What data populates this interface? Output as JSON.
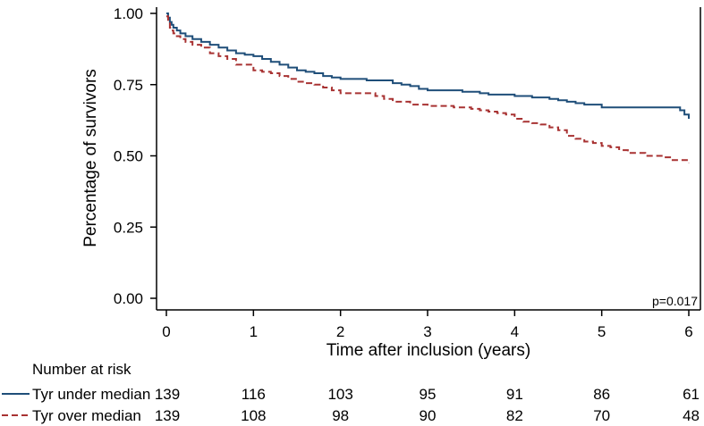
{
  "chart_data": {
    "type": "line",
    "title": "",
    "xlabel": "Time after inclusion (years)",
    "ylabel": "Percentage of survivors",
    "xlim": [
      0,
      6
    ],
    "ylim": [
      0,
      1
    ],
    "x_ticks": [
      "0",
      "1",
      "2",
      "3",
      "4",
      "5",
      "6"
    ],
    "y_ticks": [
      "0.00",
      "0.25",
      "0.50",
      "0.75",
      "1.00"
    ],
    "annotation": "p=0.017",
    "series": [
      {
        "name": "Tyr under median",
        "color": "#1f4e79",
        "style": "solid",
        "x": [
          0,
          0.02,
          0.04,
          0.06,
          0.08,
          0.12,
          0.16,
          0.22,
          0.3,
          0.4,
          0.5,
          0.6,
          0.7,
          0.8,
          0.9,
          1.0,
          1.1,
          1.2,
          1.3,
          1.4,
          1.5,
          1.6,
          1.7,
          1.8,
          1.9,
          2.0,
          2.3,
          2.6,
          2.7,
          2.8,
          2.9,
          3.0,
          3.4,
          3.6,
          3.7,
          4.0,
          4.2,
          4.4,
          4.5,
          4.6,
          4.7,
          4.8,
          5.0,
          5.9,
          5.95,
          6.0
        ],
        "y": [
          1.0,
          0.985,
          0.97,
          0.96,
          0.95,
          0.94,
          0.93,
          0.92,
          0.91,
          0.9,
          0.89,
          0.88,
          0.87,
          0.86,
          0.855,
          0.85,
          0.84,
          0.83,
          0.82,
          0.81,
          0.8,
          0.795,
          0.79,
          0.78,
          0.775,
          0.77,
          0.765,
          0.755,
          0.75,
          0.745,
          0.735,
          0.73,
          0.725,
          0.72,
          0.715,
          0.71,
          0.705,
          0.7,
          0.695,
          0.69,
          0.685,
          0.68,
          0.67,
          0.66,
          0.645,
          0.63
        ]
      },
      {
        "name": "Tyr over median",
        "color": "#a83232",
        "style": "dashed",
        "x": [
          0,
          0.02,
          0.04,
          0.06,
          0.08,
          0.12,
          0.16,
          0.22,
          0.3,
          0.4,
          0.5,
          0.6,
          0.7,
          0.8,
          1.0,
          1.1,
          1.2,
          1.3,
          1.4,
          1.5,
          1.6,
          1.7,
          1.8,
          1.9,
          2.0,
          2.4,
          2.5,
          2.6,
          2.8,
          3.0,
          3.3,
          3.5,
          3.6,
          3.7,
          3.8,
          3.9,
          4.0,
          4.1,
          4.2,
          4.3,
          4.4,
          4.5,
          4.6,
          4.7,
          4.8,
          4.9,
          5.0,
          5.1,
          5.2,
          5.3,
          5.5,
          5.7,
          5.8,
          6.0
        ],
        "y": [
          0.99,
          0.97,
          0.95,
          0.94,
          0.93,
          0.92,
          0.91,
          0.9,
          0.89,
          0.88,
          0.86,
          0.85,
          0.84,
          0.82,
          0.8,
          0.795,
          0.79,
          0.78,
          0.77,
          0.76,
          0.755,
          0.75,
          0.74,
          0.73,
          0.72,
          0.71,
          0.7,
          0.69,
          0.68,
          0.675,
          0.67,
          0.665,
          0.66,
          0.655,
          0.65,
          0.645,
          0.63,
          0.62,
          0.615,
          0.61,
          0.6,
          0.59,
          0.57,
          0.56,
          0.55,
          0.545,
          0.535,
          0.53,
          0.52,
          0.51,
          0.5,
          0.495,
          0.485,
          0.475
        ]
      }
    ]
  },
  "risk_table": {
    "title": "Number at risk",
    "rows": [
      {
        "label": "Tyr under median",
        "color": "#1f4e79",
        "style": "solid",
        "values": [
          "139",
          "116",
          "103",
          "95",
          "91",
          "86",
          "61"
        ]
      },
      {
        "label": "Tyr over median",
        "color": "#a83232",
        "style": "dashed",
        "values": [
          "139",
          "108",
          "98",
          "90",
          "82",
          "70",
          "48"
        ]
      }
    ]
  }
}
